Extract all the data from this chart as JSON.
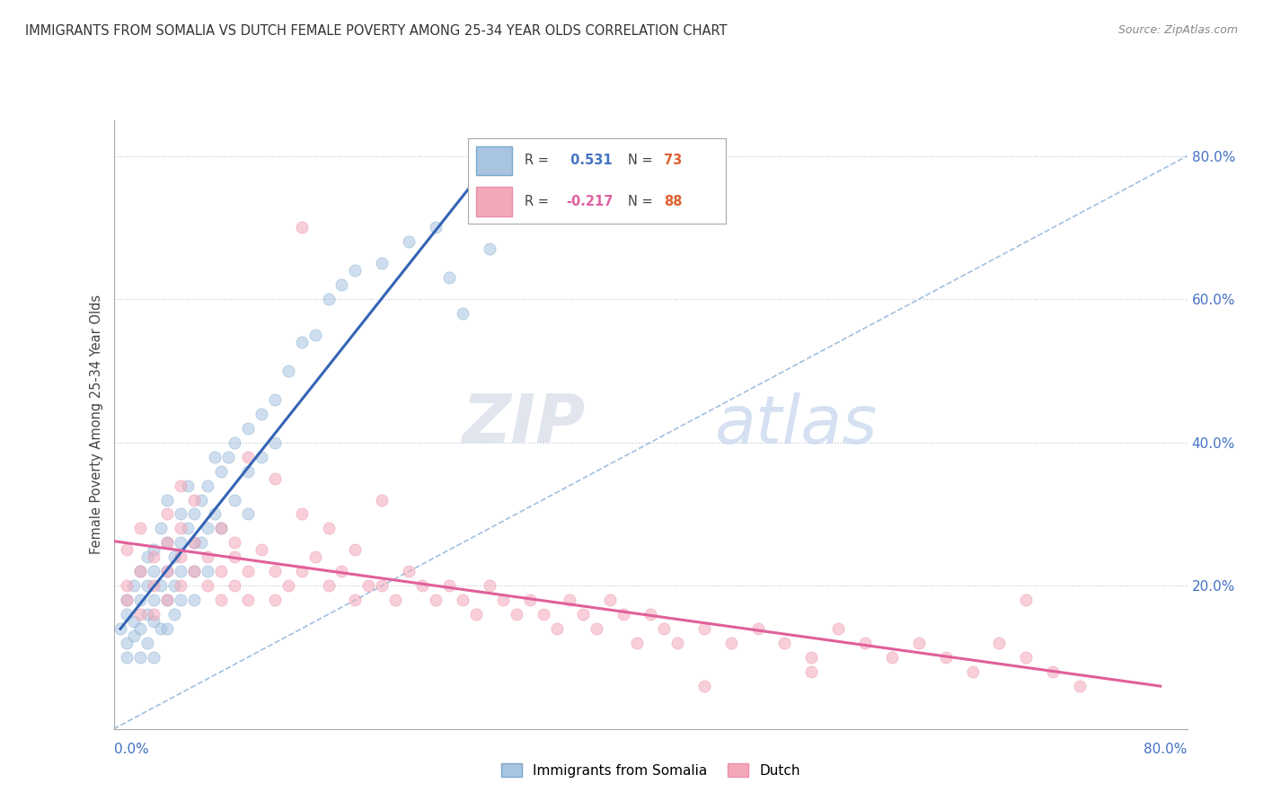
{
  "title": "IMMIGRANTS FROM SOMALIA VS DUTCH FEMALE POVERTY AMONG 25-34 YEAR OLDS CORRELATION CHART",
  "source": "Source: ZipAtlas.com",
  "ylabel": "Female Poverty Among 25-34 Year Olds",
  "xlim": [
    0.0,
    0.8
  ],
  "ylim": [
    0.0,
    0.85
  ],
  "yticks": [
    0.0,
    0.2,
    0.4,
    0.6,
    0.8
  ],
  "ytick_labels": [
    "",
    "20.0%",
    "40.0%",
    "60.0%",
    "80.0%"
  ],
  "series1_label": "Immigrants from Somalia",
  "series2_label": "Dutch",
  "series1_color": "#a8c4e0",
  "series2_color": "#f4a7b9",
  "series1_edge_color": "#7aa8cc",
  "series2_edge_color": "#e890a8",
  "series1_line_color": "#3464b4",
  "series2_line_color": "#e0609a",
  "diag_line_color": "#8ab0d8",
  "watermark_zip": "ZIP",
  "watermark_atlas": "atlas",
  "title_fontsize": 10.5,
  "scatter_alpha": 0.55,
  "scatter_size": 90,
  "somalia_x": [
    0.005,
    0.01,
    0.01,
    0.01,
    0.01,
    0.015,
    0.015,
    0.015,
    0.02,
    0.02,
    0.02,
    0.02,
    0.025,
    0.025,
    0.025,
    0.025,
    0.03,
    0.03,
    0.03,
    0.03,
    0.03,
    0.035,
    0.035,
    0.035,
    0.04,
    0.04,
    0.04,
    0.04,
    0.04,
    0.045,
    0.045,
    0.045,
    0.05,
    0.05,
    0.05,
    0.05,
    0.055,
    0.055,
    0.06,
    0.06,
    0.06,
    0.06,
    0.065,
    0.065,
    0.07,
    0.07,
    0.07,
    0.075,
    0.075,
    0.08,
    0.08,
    0.085,
    0.09,
    0.09,
    0.1,
    0.1,
    0.1,
    0.11,
    0.11,
    0.12,
    0.12,
    0.13,
    0.14,
    0.15,
    0.16,
    0.17,
    0.18,
    0.2,
    0.22,
    0.24,
    0.25,
    0.26,
    0.28
  ],
  "somalia_y": [
    0.14,
    0.12,
    0.16,
    0.18,
    0.1,
    0.15,
    0.13,
    0.2,
    0.14,
    0.18,
    0.22,
    0.1,
    0.16,
    0.2,
    0.24,
    0.12,
    0.18,
    0.22,
    0.15,
    0.25,
    0.1,
    0.2,
    0.28,
    0.14,
    0.22,
    0.18,
    0.26,
    0.14,
    0.32,
    0.24,
    0.2,
    0.16,
    0.26,
    0.3,
    0.22,
    0.18,
    0.28,
    0.34,
    0.3,
    0.26,
    0.22,
    0.18,
    0.32,
    0.26,
    0.34,
    0.28,
    0.22,
    0.3,
    0.38,
    0.36,
    0.28,
    0.38,
    0.4,
    0.32,
    0.42,
    0.36,
    0.3,
    0.44,
    0.38,
    0.46,
    0.4,
    0.5,
    0.54,
    0.55,
    0.6,
    0.62,
    0.64,
    0.65,
    0.68,
    0.7,
    0.63,
    0.58,
    0.67
  ],
  "dutch_x": [
    0.01,
    0.01,
    0.01,
    0.02,
    0.02,
    0.02,
    0.03,
    0.03,
    0.03,
    0.04,
    0.04,
    0.04,
    0.05,
    0.05,
    0.05,
    0.06,
    0.06,
    0.07,
    0.07,
    0.08,
    0.08,
    0.09,
    0.09,
    0.1,
    0.1,
    0.11,
    0.12,
    0.12,
    0.13,
    0.14,
    0.15,
    0.16,
    0.17,
    0.18,
    0.19,
    0.2,
    0.21,
    0.22,
    0.23,
    0.24,
    0.25,
    0.26,
    0.27,
    0.28,
    0.29,
    0.3,
    0.31,
    0.32,
    0.33,
    0.34,
    0.35,
    0.36,
    0.37,
    0.38,
    0.39,
    0.4,
    0.41,
    0.42,
    0.44,
    0.46,
    0.48,
    0.5,
    0.52,
    0.54,
    0.56,
    0.58,
    0.6,
    0.62,
    0.64,
    0.66,
    0.68,
    0.7,
    0.72,
    0.04,
    0.05,
    0.06,
    0.08,
    0.09,
    0.1,
    0.12,
    0.14,
    0.16,
    0.18,
    0.2,
    0.14,
    0.52,
    0.44,
    0.68
  ],
  "dutch_y": [
    0.2,
    0.25,
    0.18,
    0.22,
    0.28,
    0.16,
    0.24,
    0.2,
    0.16,
    0.26,
    0.22,
    0.18,
    0.28,
    0.24,
    0.2,
    0.26,
    0.22,
    0.24,
    0.2,
    0.22,
    0.18,
    0.24,
    0.2,
    0.22,
    0.18,
    0.25,
    0.22,
    0.18,
    0.2,
    0.22,
    0.24,
    0.2,
    0.22,
    0.18,
    0.2,
    0.2,
    0.18,
    0.22,
    0.2,
    0.18,
    0.2,
    0.18,
    0.16,
    0.2,
    0.18,
    0.16,
    0.18,
    0.16,
    0.14,
    0.18,
    0.16,
    0.14,
    0.18,
    0.16,
    0.12,
    0.16,
    0.14,
    0.12,
    0.14,
    0.12,
    0.14,
    0.12,
    0.1,
    0.14,
    0.12,
    0.1,
    0.12,
    0.1,
    0.08,
    0.12,
    0.1,
    0.08,
    0.06,
    0.3,
    0.34,
    0.32,
    0.28,
    0.26,
    0.38,
    0.35,
    0.3,
    0.28,
    0.25,
    0.32,
    0.7,
    0.08,
    0.06,
    0.18
  ]
}
